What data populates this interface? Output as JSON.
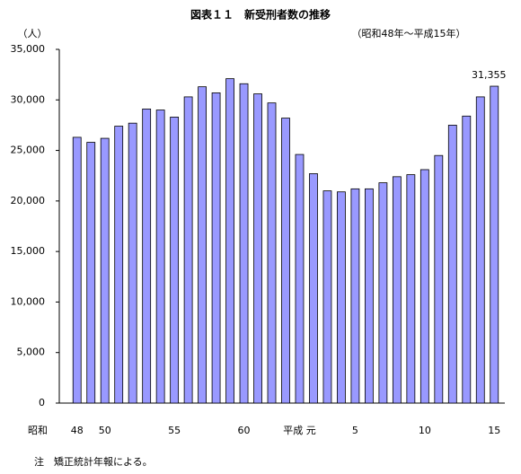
{
  "chart_data": {
    "type": "bar",
    "title": "図表１１　新受刑者数の推移",
    "subtitle": "（昭和48年～平成15年）",
    "y_unit": "（人）",
    "era_label": "昭和",
    "note": "注　矯正統計年報による。",
    "categories": [
      "48",
      null,
      "50",
      null,
      null,
      null,
      null,
      "55",
      null,
      null,
      null,
      null,
      "60",
      null,
      null,
      null,
      "平成 元",
      null,
      null,
      null,
      "5",
      null,
      null,
      null,
      null,
      "10",
      null,
      null,
      null,
      null,
      "15"
    ],
    "values": [
      26300,
      25800,
      26200,
      27400,
      27700,
      29100,
      29000,
      28300,
      30300,
      31300,
      30700,
      32100,
      31600,
      30600,
      29700,
      28200,
      24600,
      22700,
      21000,
      20900,
      21200,
      21200,
      21800,
      22400,
      22600,
      23100,
      24500,
      27500,
      28400,
      30300,
      31355
    ],
    "value_labels": [
      null,
      null,
      null,
      null,
      null,
      null,
      null,
      null,
      null,
      null,
      null,
      null,
      null,
      null,
      null,
      null,
      null,
      null,
      null,
      null,
      null,
      null,
      null,
      null,
      null,
      null,
      null,
      null,
      null,
      null,
      "31,355"
    ],
    "color": "#9999ff",
    "ylim": [
      0,
      35000
    ],
    "yticks": [
      0,
      {
        "value": 5000,
        "label": "5,000"
      },
      {
        "value": 10000,
        "label": "10,000"
      },
      {
        "value": 15000,
        "label": "15,000"
      },
      {
        "value": 20000,
        "label": "20,000"
      },
      {
        "value": 25000,
        "label": "25,000"
      },
      {
        "value": 30000,
        "label": "30,000"
      },
      {
        "value": 35000,
        "label": "35,000"
      }
    ],
    "grid": false
  }
}
